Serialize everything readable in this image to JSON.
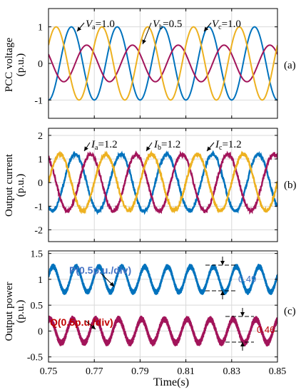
{
  "chart_data": [
    {
      "type": "line",
      "panel_tag": "(a)",
      "ylabel_line1": "PCC voltage",
      "ylabel_line2": "(p.u.)",
      "ylim": [
        -1.5,
        1.5
      ],
      "yticks": [
        -1,
        0,
        1
      ],
      "xlim": [
        0.75,
        0.85
      ],
      "grid": true,
      "frequency_hz": 50,
      "series": [
        {
          "key": "a",
          "color": "#0072bd",
          "amplitude": 1.0,
          "phase_deg": 90
        },
        {
          "key": "b",
          "color": "#a2145a",
          "amplitude": 0.5,
          "phase_deg": -30
        },
        {
          "key": "c",
          "color": "#edb120",
          "amplitude": 1.0,
          "phase_deg": 210
        }
      ],
      "annotations": [
        {
          "sym": "V",
          "sub": "a",
          "text": "=1.0"
        },
        {
          "sym": "V",
          "sub": "b",
          "text": "=0.5"
        },
        {
          "sym": "V",
          "sub": "c",
          "text": "=1.0"
        }
      ]
    },
    {
      "type": "line",
      "panel_tag": "(b)",
      "ylabel_line1": "Output current",
      "ylabel_line2": "(p.u.)",
      "ylim": [
        -2.5,
        2.3
      ],
      "yticks": [
        -2,
        -1,
        0,
        1,
        2
      ],
      "xlim": [
        0.75,
        0.85
      ],
      "grid": true,
      "frequency_hz": 50,
      "series": [
        {
          "key": "a",
          "color": "#0072bd",
          "amplitude": 1.2,
          "phase_deg": 60
        },
        {
          "key": "b",
          "color": "#a2145a",
          "amplitude": 1.2,
          "phase_deg": -60
        },
        {
          "key": "c",
          "color": "#edb120",
          "amplitude": 1.2,
          "phase_deg": 180
        }
      ],
      "annotations": [
        {
          "sym": "I",
          "sub": "a",
          "text": "=1.2"
        },
        {
          "sym": "I",
          "sub": "b",
          "text": "=1.2"
        },
        {
          "sym": "I",
          "sub": "c",
          "text": "=1.2"
        }
      ]
    },
    {
      "type": "line",
      "panel_tag": "(c)",
      "ylabel_line1": "Output power",
      "ylabel_line2": "(p.u.)",
      "ylim": [
        -0.6,
        1.55
      ],
      "yticks": [
        -0.5,
        0,
        0.5,
        1,
        1.5
      ],
      "xlim": [
        0.75,
        0.85
      ],
      "xticks": [
        0.75,
        0.77,
        0.79,
        0.81,
        0.83,
        0.85
      ],
      "xlabel": "Time(s)",
      "grid": true,
      "oscillation_hz": 100,
      "series": [
        {
          "key": "P",
          "label": "P(0.5p.u./div)",
          "color": "#0072bd",
          "mean": 1.0,
          "amplitude": 0.245,
          "band": 0.06
        },
        {
          "key": "Q",
          "label": "Q(0.5p.u./div)",
          "color": "#a2145a",
          "mean": 0.0,
          "amplitude": 0.23,
          "band": 0.07
        }
      ],
      "dimensions": [
        {
          "value": "0.49",
          "color": "#4472c4"
        },
        {
          "value": "0.46",
          "color": "#c00000"
        }
      ]
    }
  ]
}
